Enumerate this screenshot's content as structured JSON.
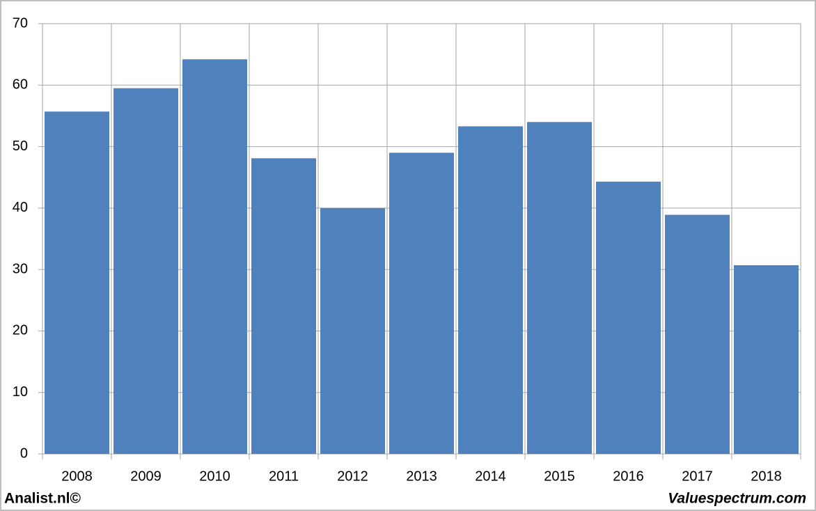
{
  "chart_data": {
    "type": "bar",
    "categories": [
      "2008",
      "2009",
      "2010",
      "2011",
      "2012",
      "2013",
      "2014",
      "2015",
      "2016",
      "2017",
      "2018"
    ],
    "values": [
      55.7,
      59.5,
      64.2,
      48.1,
      40,
      49,
      53.3,
      54,
      44.3,
      38.9,
      30.7
    ],
    "color": "#4f81bd",
    "ylim": [
      0,
      70
    ],
    "yticks": [
      0,
      10,
      20,
      30,
      40,
      50,
      60,
      70
    ],
    "grid": true,
    "annotations": [
      "Analist.nl©",
      "Valuespectrum.com"
    ]
  }
}
